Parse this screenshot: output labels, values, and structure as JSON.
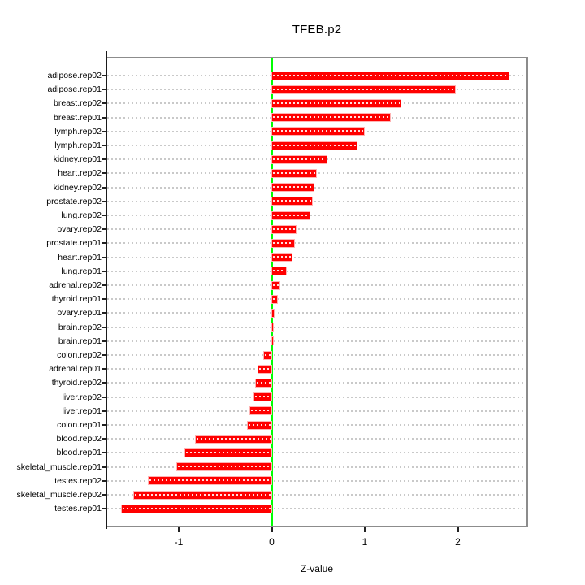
{
  "chart_data": {
    "type": "bar",
    "orientation": "horizontal",
    "title": "TFEB.p2",
    "xlabel": "Z-value",
    "ylabel": "",
    "categories": [
      "adipose.rep02",
      "adipose.rep01",
      "breast.rep02",
      "breast.rep01",
      "lymph.rep02",
      "lymph.rep01",
      "kidney.rep01",
      "heart.rep02",
      "kidney.rep02",
      "prostate.rep02",
      "lung.rep02",
      "ovary.rep02",
      "prostate.rep01",
      "heart.rep01",
      "lung.rep01",
      "adrenal.rep02",
      "thyroid.rep01",
      "ovary.rep01",
      "brain.rep02",
      "brain.rep01",
      "colon.rep02",
      "adrenal.rep01",
      "thyroid.rep02",
      "liver.rep02",
      "liver.rep01",
      "colon.rep01",
      "blood.rep02",
      "blood.rep01",
      "skeletal_muscle.rep01",
      "testes.rep02",
      "skeletal_muscle.rep02",
      "testes.rep01"
    ],
    "values": [
      2.55,
      1.97,
      1.38,
      1.27,
      0.99,
      0.91,
      0.59,
      0.48,
      0.45,
      0.43,
      0.41,
      0.26,
      0.24,
      0.21,
      0.15,
      0.08,
      0.06,
      0.02,
      0.015,
      0.005,
      -0.08,
      -0.14,
      -0.17,
      -0.19,
      -0.23,
      -0.26,
      -0.82,
      -0.93,
      -1.02,
      -1.32,
      -1.48,
      -1.61
    ],
    "xticks": [
      -1,
      0,
      1,
      2
    ],
    "xlim": [
      -1.77,
      2.74
    ],
    "grid": "horizontal-dotted-per-category",
    "legend": "none",
    "zero_reference_line": 0,
    "colors": {
      "bar": "#ff0000",
      "bar_edge": "#ffb3b3",
      "zero_line": "#00ff00",
      "grid": "#c9c9c9",
      "frame": "#8c8c8c",
      "axis": "#1a1a1a",
      "text": "#000000",
      "background": "#ffffff"
    }
  }
}
